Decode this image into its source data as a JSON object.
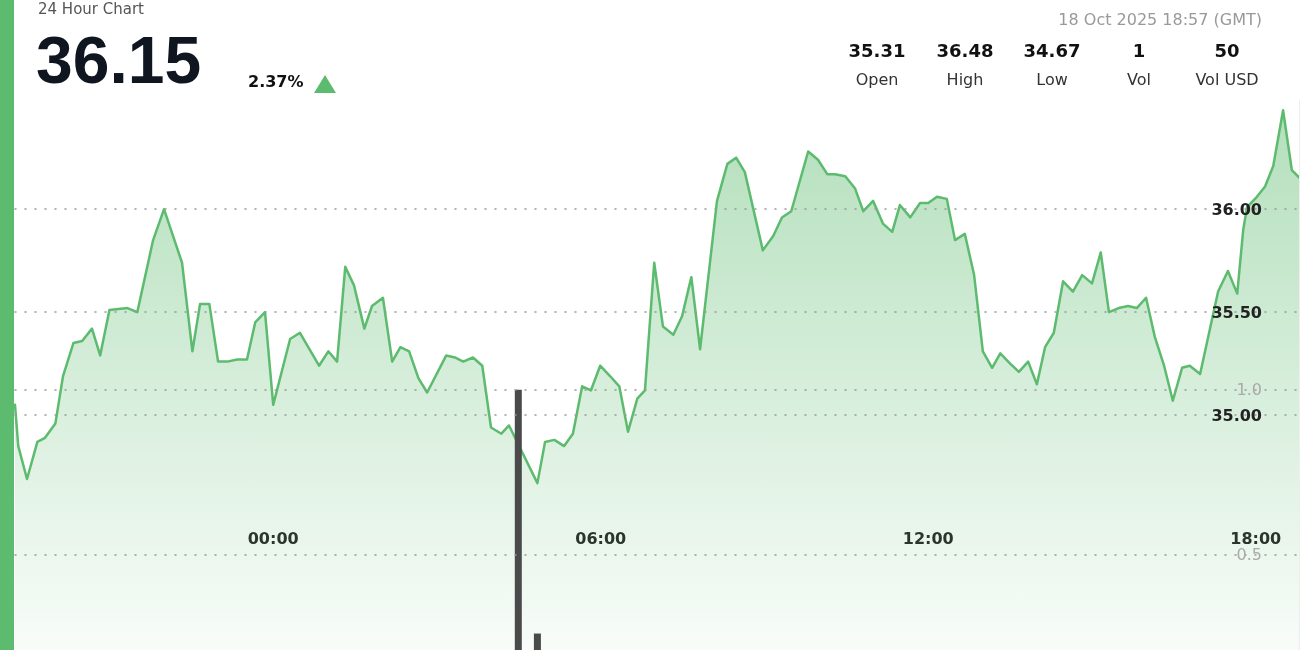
{
  "chart_data": {
    "type": "area",
    "title": "24 Hour Chart",
    "annotations": [
      "36.15",
      "2.37%",
      "18 Oct 2025 18:57 (GMT)",
      "35.31",
      "Open",
      "36.48",
      "High",
      "34.67",
      "Low",
      "1",
      "Vol",
      "50",
      "Vol USD"
    ],
    "xlim": [
      -4.73,
      18.81
    ],
    "xticks": [
      {
        "value": 0,
        "label": "00:00"
      },
      {
        "value": 6,
        "label": "06:00"
      },
      {
        "value": 12,
        "label": "12:00"
      },
      {
        "value": 18,
        "label": "18:00"
      }
    ],
    "ylim": [
      33.86,
      36.53
    ],
    "yticks": [
      {
        "value": 35,
        "label": "35.00"
      },
      {
        "value": 35.5,
        "label": "35.50"
      },
      {
        "value": 36,
        "label": "36.00"
      }
    ],
    "y2lim": [
      0.21,
      1.88
    ],
    "y2ticks": [
      {
        "value": 1,
        "label": "1.0"
      },
      {
        "value": 0.5,
        "label": "0.5"
      }
    ],
    "grid": "y",
    "series": [
      {
        "color": "#5dbb6f",
        "x": [
          -4.73,
          -4.67,
          -4.51,
          -4.32,
          -4.18,
          -3.99,
          -3.85,
          -3.66,
          -3.5,
          -3.32,
          -3.17,
          -3.0,
          -2.67,
          -2.49,
          -2.2,
          -2.0,
          -1.67,
          -1.48,
          -1.34,
          -1.17,
          -1.01,
          -0.84,
          -0.66,
          -0.48,
          -0.33,
          -0.15,
          0.0,
          0.31,
          0.49,
          0.84,
          1.01,
          1.17,
          1.32,
          1.48,
          1.67,
          1.81,
          2.01,
          2.18,
          2.33,
          2.49,
          2.66,
          2.82,
          3.17,
          3.33,
          3.48,
          3.66,
          3.83,
          3.99,
          4.18,
          4.32,
          4.84,
          4.98,
          5.15,
          5.33,
          5.49,
          5.66,
          5.82,
          5.99,
          6.17,
          6.34,
          6.5,
          6.67,
          6.81,
          6.98,
          7.14,
          7.33,
          7.49,
          7.66,
          7.82,
          8.13,
          8.32,
          8.48,
          8.64,
          8.97,
          9.16,
          9.32,
          9.49,
          9.8,
          9.98,
          10.15,
          10.29,
          10.48,
          10.66,
          10.81,
          10.99,
          11.17,
          11.34,
          11.48,
          11.67,
          11.85,
          12.0,
          12.16,
          12.34,
          12.49,
          12.67,
          12.84,
          13.0,
          13.17,
          13.32,
          13.5,
          13.66,
          13.83,
          13.99,
          14.14,
          14.3,
          14.47,
          14.65,
          14.82,
          15.0,
          15.16,
          15.31,
          15.49,
          15.66,
          15.82,
          15.99,
          16.15,
          16.32,
          16.48,
          16.65,
          16.79,
          16.98,
          17.12,
          17.31,
          17.49,
          17.66,
          17.77,
          17.84,
          18.02,
          18.17,
          18.32,
          18.5,
          18.66,
          18.81
        ],
        "values": [
          35.05,
          34.85,
          34.69,
          34.87,
          34.89,
          34.96,
          35.19,
          35.35,
          35.36,
          35.42,
          35.29,
          35.51,
          35.52,
          35.5,
          35.85,
          36.0,
          35.74,
          35.31,
          35.54,
          35.54,
          35.26,
          35.26,
          35.27,
          35.27,
          35.45,
          35.5,
          35.05,
          35.37,
          35.4,
          35.24,
          35.31,
          35.26,
          35.72,
          35.63,
          35.42,
          35.53,
          35.57,
          35.26,
          35.33,
          35.31,
          35.18,
          35.11,
          35.29,
          35.28,
          35.26,
          35.28,
          35.24,
          34.94,
          34.91,
          34.95,
          34.67,
          34.87,
          34.88,
          34.85,
          34.91,
          35.14,
          35.12,
          35.24,
          35.19,
          35.14,
          34.92,
          35.08,
          35.12,
          35.74,
          35.43,
          35.39,
          35.48,
          35.67,
          35.32,
          36.04,
          36.22,
          36.25,
          36.18,
          35.8,
          35.87,
          35.96,
          35.99,
          36.28,
          36.24,
          36.17,
          36.17,
          36.16,
          36.1,
          35.99,
          36.04,
          35.93,
          35.89,
          36.02,
          35.96,
          36.03,
          36.03,
          36.06,
          36.05,
          35.85,
          35.88,
          35.68,
          35.31,
          35.23,
          35.3,
          35.25,
          35.21,
          35.26,
          35.15,
          35.33,
          35.4,
          35.65,
          35.6,
          35.68,
          35.64,
          35.79,
          35.5,
          35.52,
          35.53,
          35.52,
          35.57,
          35.38,
          35.24,
          35.07,
          35.23,
          35.24,
          35.2,
          35.37,
          35.6,
          35.7,
          35.59,
          35.9,
          36.01,
          36.06,
          36.11,
          36.21,
          36.48,
          36.19,
          36.15
        ]
      },
      {
        "type": "bar",
        "axis": "y2",
        "color": "#4a4a4a",
        "x": [
          4.49,
          4.84
        ],
        "values": [
          1.0,
          0.26
        ]
      }
    ]
  }
}
